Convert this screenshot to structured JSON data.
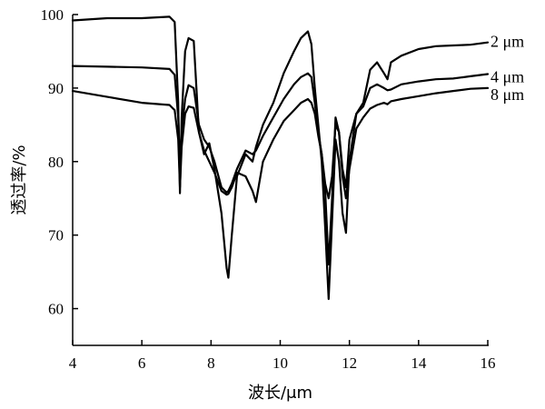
{
  "chart_data": {
    "type": "line",
    "xlabel": "波长/μm",
    "ylabel": "透过率/%",
    "xlim": [
      4,
      16
    ],
    "ylim": [
      55,
      100
    ],
    "xticks": [
      4,
      6,
      8,
      10,
      12,
      14,
      16
    ],
    "yticks": [
      60,
      70,
      80,
      90,
      100
    ],
    "grid": false,
    "legend": "inline-right",
    "series": [
      {
        "name": "2 μm",
        "x": [
          4,
          5,
          6,
          6.8,
          6.95,
          7.05,
          7.1,
          7.15,
          7.25,
          7.35,
          7.5,
          7.65,
          7.8,
          7.95,
          8.1,
          8.3,
          8.45,
          8.5,
          8.6,
          8.75,
          9.0,
          9.2,
          9.3,
          9.5,
          9.8,
          10.1,
          10.4,
          10.6,
          10.8,
          10.9,
          11.0,
          11.1,
          11.2,
          11.3,
          11.4,
          11.5,
          11.6,
          11.7,
          11.8,
          11.9,
          12.0,
          12.2,
          12.4,
          12.6,
          12.8,
          13.0,
          13.1,
          13.2,
          13.5,
          14.0,
          14.5,
          15.0,
          15.5,
          16.0
        ],
        "y": [
          99.2,
          99.5,
          99.5,
          99.7,
          99.0,
          88.0,
          75.7,
          86.0,
          95.0,
          96.8,
          96.4,
          84.0,
          81.0,
          82.5,
          79.0,
          73.0,
          65.5,
          64.2,
          70.0,
          78.0,
          81.0,
          80.0,
          82.0,
          85.0,
          88.0,
          92.0,
          95.0,
          96.8,
          97.7,
          96.0,
          90.0,
          85.0,
          80.0,
          71.0,
          61.3,
          72.0,
          83.0,
          80.0,
          73.0,
          70.3,
          80.0,
          86.5,
          88.0,
          92.5,
          93.5,
          92.0,
          91.2,
          93.5,
          94.4,
          95.3,
          95.7,
          95.8,
          95.9,
          96.2
        ]
      },
      {
        "name": "4 μm",
        "x": [
          4,
          5,
          6,
          6.8,
          6.95,
          7.05,
          7.1,
          7.15,
          7.25,
          7.35,
          7.5,
          7.65,
          7.8,
          7.95,
          8.1,
          8.3,
          8.45,
          8.5,
          8.6,
          8.75,
          9.0,
          9.2,
          9.3,
          9.5,
          9.8,
          10.1,
          10.4,
          10.6,
          10.8,
          10.9,
          11.0,
          11.1,
          11.2,
          11.3,
          11.4,
          11.5,
          11.6,
          11.7,
          11.8,
          11.9,
          12.0,
          12.2,
          12.4,
          12.6,
          12.8,
          13.0,
          13.1,
          13.2,
          13.5,
          14.0,
          14.5,
          15.0,
          15.5,
          16.0
        ],
        "y": [
          93.0,
          92.9,
          92.8,
          92.6,
          91.8,
          86.0,
          80.0,
          84.0,
          88.5,
          90.4,
          90.0,
          85.0,
          83.0,
          82.0,
          80.0,
          76.5,
          75.8,
          76.0,
          77.0,
          79.0,
          81.5,
          81.0,
          81.5,
          83.5,
          86.0,
          88.5,
          90.5,
          91.5,
          92.0,
          91.5,
          88.0,
          84.0,
          81.0,
          76.0,
          66.0,
          75.0,
          86.0,
          84.0,
          79.0,
          76.5,
          83.0,
          86.5,
          87.5,
          90.0,
          90.5,
          90.0,
          89.7,
          89.8,
          90.5,
          90.9,
          91.2,
          91.3,
          91.6,
          91.9
        ]
      },
      {
        "name": "8 μm",
        "x": [
          4,
          5,
          6,
          6.8,
          6.95,
          7.05,
          7.1,
          7.15,
          7.25,
          7.35,
          7.5,
          7.65,
          7.8,
          7.95,
          8.1,
          8.3,
          8.45,
          8.5,
          8.6,
          8.75,
          9.0,
          9.2,
          9.3,
          9.5,
          9.8,
          10.1,
          10.4,
          10.6,
          10.8,
          10.9,
          11.0,
          11.1,
          11.2,
          11.3,
          11.4,
          11.5,
          11.6,
          11.7,
          11.8,
          11.9,
          12.0,
          12.2,
          12.4,
          12.6,
          12.8,
          13.0,
          13.1,
          13.2,
          13.5,
          14.0,
          14.5,
          15.0,
          15.5,
          16.0
        ],
        "y": [
          89.6,
          88.8,
          88.0,
          87.7,
          87.0,
          83.0,
          76.5,
          82.0,
          86.5,
          87.5,
          87.3,
          84.0,
          81.5,
          80.0,
          78.5,
          76.0,
          75.5,
          75.6,
          76.5,
          78.5,
          78.0,
          76.0,
          74.5,
          80.0,
          83.0,
          85.5,
          87.0,
          88.0,
          88.5,
          88.0,
          86.5,
          83.5,
          81.0,
          77.0,
          75.0,
          78.0,
          85.0,
          84.0,
          78.0,
          75.0,
          79.0,
          84.5,
          86.0,
          87.2,
          87.7,
          88.0,
          87.8,
          88.2,
          88.5,
          88.9,
          89.3,
          89.6,
          89.9,
          90.0
        ]
      }
    ],
    "series_labels": [
      "2 μm",
      "4 μm",
      "8 μm"
    ]
  }
}
